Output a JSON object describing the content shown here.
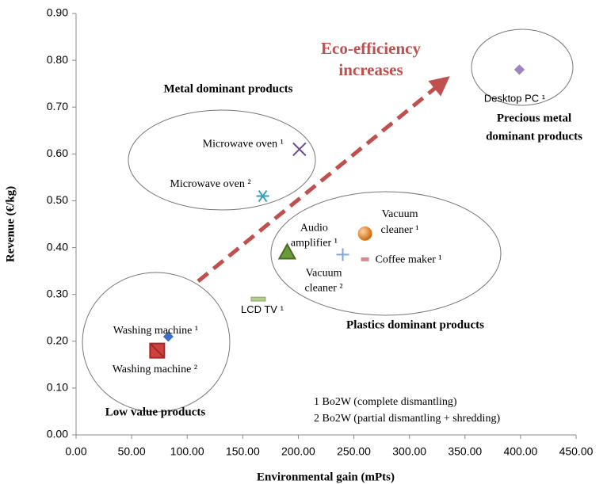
{
  "chart_data": {
    "type": "scatter",
    "x_label": "Environmental gain (mPts)",
    "y_label": "Revenue (€/kg)",
    "xlim": [
      0,
      450
    ],
    "ylim": [
      0,
      0.9
    ],
    "xticks": [
      {
        "value": 0,
        "label": "0.00"
      },
      {
        "value": 50,
        "label": "50.00"
      },
      {
        "value": 100,
        "label": "100.00"
      },
      {
        "value": 150,
        "label": "150.00"
      },
      {
        "value": 200,
        "label": "200.00"
      },
      {
        "value": 250,
        "label": "250.00"
      },
      {
        "value": 300,
        "label": "300.00"
      },
      {
        "value": 350,
        "label": "350.00"
      },
      {
        "value": 400,
        "label": "400.00"
      },
      {
        "value": 450,
        "label": "450.00"
      }
    ],
    "yticks": [
      {
        "value": 0,
        "label": "0.00"
      },
      {
        "value": 0.1,
        "label": "0.10"
      },
      {
        "value": 0.2,
        "label": "0.20"
      },
      {
        "value": 0.3,
        "label": "0.30"
      },
      {
        "value": 0.4,
        "label": "0.40"
      },
      {
        "value": 0.5,
        "label": "0.50"
      },
      {
        "value": 0.6,
        "label": "0.60"
      },
      {
        "value": 0.7,
        "label": "0.70"
      },
      {
        "value": 0.8,
        "label": "0.80"
      },
      {
        "value": 0.9,
        "label": "0.90"
      }
    ],
    "points": [
      {
        "label_lines": [
          "Desktop PC ¹"
        ],
        "x": 399,
        "y": 0.78,
        "marker": "diamond",
        "color": "#9b85c4"
      },
      {
        "label_lines": [
          "Microwave oven ¹"
        ],
        "x": 201,
        "y": 0.61,
        "marker": "x",
        "color": "#6a4a8c"
      },
      {
        "label_lines": [
          "Microwave oven ²"
        ],
        "x": 168,
        "y": 0.51,
        "marker": "asterisk",
        "color": "#3aa0b0"
      },
      {
        "label_lines": [
          "Vacuum",
          "cleaner ¹"
        ],
        "x": 260,
        "y": 0.43,
        "marker": "sphere",
        "color": "#e07b20"
      },
      {
        "label_lines": [
          "Audio",
          "amplifier ¹"
        ],
        "x": 190,
        "y": 0.39,
        "marker": "triangle",
        "color": "#6b9a3a"
      },
      {
        "label_lines": [
          "Vacuum",
          "cleaner ²"
        ],
        "x": 240,
        "y": 0.385,
        "marker": "plus",
        "color": "#7fa6dc"
      },
      {
        "label_lines": [
          "Coffee maker ¹"
        ],
        "x": 260,
        "y": 0.375,
        "marker": "rect",
        "color": "#d98a8a"
      },
      {
        "label_lines": [
          "LCD TV ¹"
        ],
        "x": 164,
        "y": 0.29,
        "marker": "dash",
        "color": "#b5cf8a"
      },
      {
        "label_lines": [
          "Washing machine ¹"
        ],
        "x": 83,
        "y": 0.21,
        "marker": "diamond",
        "color": "#3a6fc4"
      },
      {
        "label_lines": [
          "Washing machine ²"
        ],
        "x": 73,
        "y": 0.18,
        "marker": "square",
        "color": "#d04040"
      }
    ],
    "annotations": {
      "metal": "Metal dominant products",
      "precious": [
        "Precious metal",
        "dominant products"
      ],
      "plastics": "Plastics dominant products",
      "low": "Low value products",
      "eco": [
        "Eco-efficiency",
        "increases"
      ],
      "notes": [
        "1 Bo2W (complete dismantling)",
        "2 Bo2W (partial dismantling + shredding)"
      ]
    }
  }
}
